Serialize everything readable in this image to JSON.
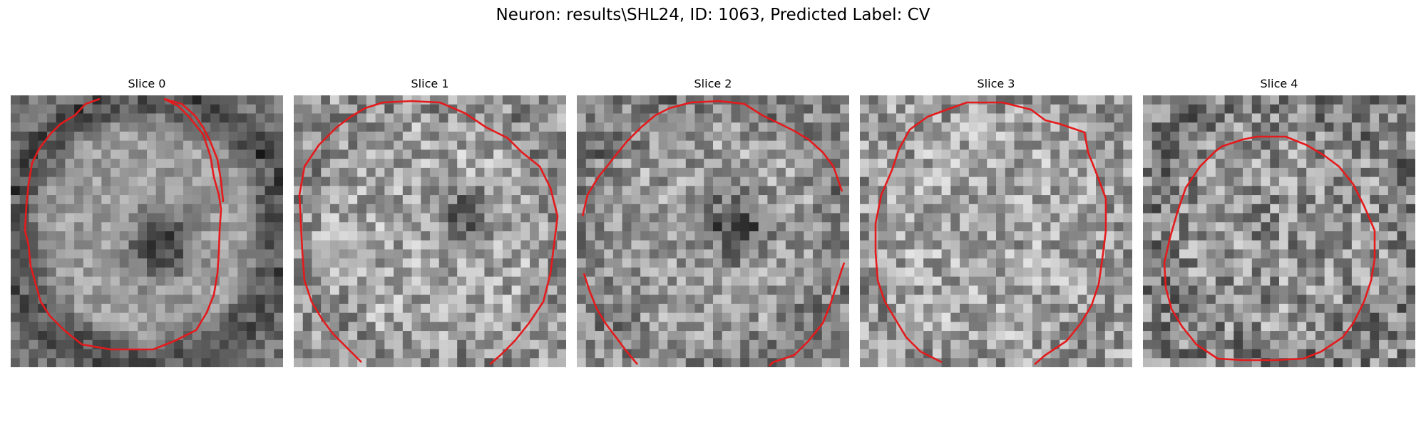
{
  "figure": {
    "title": "Neuron: results\\SHL24, ID: 1063, Predicted Label: CV"
  },
  "colors": {
    "contour": "#e41a1c",
    "background": "#ffffff"
  },
  "panels": [
    {
      "title": "Slice 0"
    },
    {
      "title": "Slice 1"
    },
    {
      "title": "Slice 2"
    },
    {
      "title": "Slice 3"
    },
    {
      "title": "Slice 4"
    }
  ]
}
